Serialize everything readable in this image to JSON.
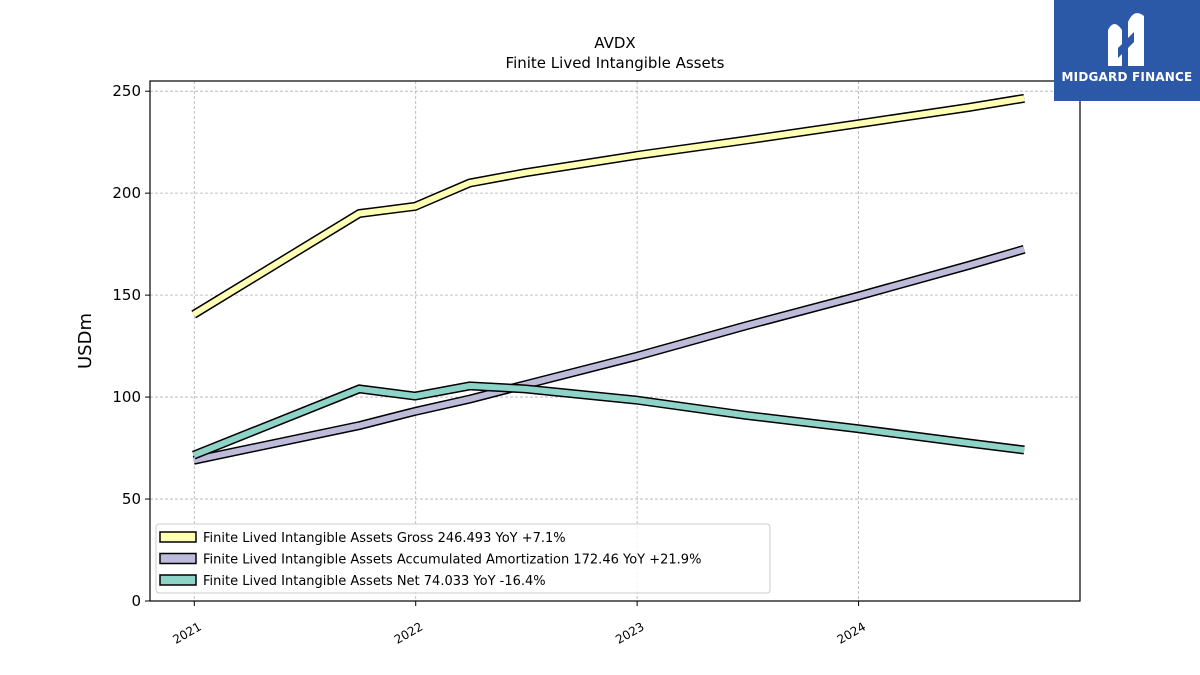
{
  "chart_data": {
    "type": "line",
    "title": "AVDX",
    "subtitle": "Finite Lived Intangible Assets",
    "ylabel": "USDm",
    "xlabel": "",
    "ylim": [
      0,
      255
    ],
    "xlim": [
      "2020-10-20",
      "2024-12-31"
    ],
    "yticks": [
      0,
      50,
      100,
      150,
      200,
      250
    ],
    "xticks": [
      {
        "date": "2021-01-01",
        "label": "2021"
      },
      {
        "date": "2022-01-01",
        "label": "2022"
      },
      {
        "date": "2023-01-01",
        "label": "2023"
      },
      {
        "date": "2024-01-01",
        "label": "2024"
      }
    ],
    "grid": true,
    "legend_position": "lower-left",
    "series": [
      {
        "name": "Finite Lived Intangible Assets Gross  246.493 YoY +7.1%",
        "color": "#ffffb3",
        "points": [
          {
            "x": "2020-12-31",
            "y": 140.5
          },
          {
            "x": "2021-09-30",
            "y": 190.0
          },
          {
            "x": "2021-12-31",
            "y": 193.5
          },
          {
            "x": "2022-03-31",
            "y": 205.0
          },
          {
            "x": "2022-06-30",
            "y": 210.0
          },
          {
            "x": "2022-12-31",
            "y": 218.5
          },
          {
            "x": "2023-06-30",
            "y": 226.0
          },
          {
            "x": "2023-12-31",
            "y": 234.0
          },
          {
            "x": "2024-06-30",
            "y": 242.0
          },
          {
            "x": "2024-09-30",
            "y": 246.493
          }
        ]
      },
      {
        "name": "Finite Lived Intangible Assets Accumulated Amortization  172.46 YoY +21.9%",
        "color": "#bebada",
        "points": [
          {
            "x": "2020-12-31",
            "y": 69.0
          },
          {
            "x": "2021-09-30",
            "y": 86.0
          },
          {
            "x": "2021-12-31",
            "y": 93.0
          },
          {
            "x": "2022-03-31",
            "y": 99.0
          },
          {
            "x": "2022-06-30",
            "y": 106.0
          },
          {
            "x": "2022-12-31",
            "y": 120.0
          },
          {
            "x": "2023-06-30",
            "y": 135.0
          },
          {
            "x": "2023-12-31",
            "y": 149.5
          },
          {
            "x": "2024-06-30",
            "y": 164.5
          },
          {
            "x": "2024-09-30",
            "y": 172.46
          }
        ]
      },
      {
        "name": "Finite Lived Intangible Assets Net  74.033 YoY -16.4%",
        "color": "#8dd3c7",
        "points": [
          {
            "x": "2020-12-31",
            "y": 71.5
          },
          {
            "x": "2021-09-30",
            "y": 104.0
          },
          {
            "x": "2021-12-31",
            "y": 100.5
          },
          {
            "x": "2022-03-31",
            "y": 105.5
          },
          {
            "x": "2022-06-30",
            "y": 104.0
          },
          {
            "x": "2022-12-31",
            "y": 98.5
          },
          {
            "x": "2023-06-30",
            "y": 91.0
          },
          {
            "x": "2023-12-31",
            "y": 84.5
          },
          {
            "x": "2024-06-30",
            "y": 77.5
          },
          {
            "x": "2024-09-30",
            "y": 74.033
          }
        ]
      }
    ]
  },
  "logo": {
    "text": "MIDGARD FINANCE",
    "color": "#2c58a8"
  }
}
